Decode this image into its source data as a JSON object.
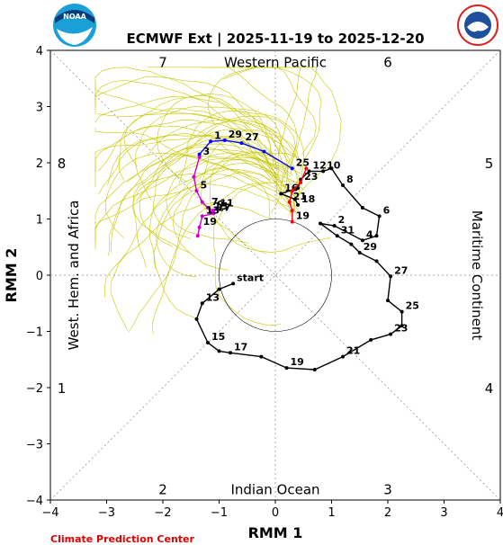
{
  "chart_data": {
    "type": "scatter",
    "title": "ECMWF Ext | 2025-11-19 to 2025-12-20",
    "xlabel": "RMM 1",
    "ylabel": "RMM 2",
    "xlim": [
      -4,
      4
    ],
    "ylim": [
      -4,
      4
    ],
    "xticks": [
      "−4",
      "−3",
      "−2",
      "−1",
      "0",
      "1",
      "2",
      "3",
      "4"
    ],
    "yticks": [
      "−4",
      "−3",
      "−2",
      "−1",
      "0",
      "1",
      "2",
      "3",
      "4"
    ],
    "phase_labels": [
      {
        "text": "7",
        "x": -2,
        "y": 3.8
      },
      {
        "text": "6",
        "x": 2,
        "y": 3.8
      },
      {
        "text": "8",
        "x": -3.8,
        "y": 2
      },
      {
        "text": "5",
        "x": 3.8,
        "y": 2
      },
      {
        "text": "1",
        "x": -3.8,
        "y": -2
      },
      {
        "text": "4",
        "x": 3.8,
        "y": -2
      },
      {
        "text": "2",
        "x": -2,
        "y": -3.8
      },
      {
        "text": "3",
        "x": 2,
        "y": -3.8
      }
    ],
    "region_labels": {
      "top": "Western Pacific",
      "bottom": "Indian Ocean",
      "left": "West. Hem. and Africa",
      "right": "Maritime Continent"
    },
    "credit": "Climate Prediction Center",
    "series": [
      {
        "color": "#000000",
        "points": [
          {
            "x": -0.75,
            "y": -0.15,
            "label": "start"
          },
          {
            "x": -1.0,
            "y": -0.25
          },
          {
            "x": -1.3,
            "y": -0.5,
            "label": "13"
          },
          {
            "x": -1.4,
            "y": -0.78
          },
          {
            "x": -1.2,
            "y": -1.2,
            "label": "15"
          },
          {
            "x": -1.0,
            "y": -1.35
          },
          {
            "x": -0.8,
            "y": -1.38,
            "label": "17"
          },
          {
            "x": -0.25,
            "y": -1.45
          },
          {
            "x": 0.2,
            "y": -1.65,
            "label": "19"
          },
          {
            "x": 0.7,
            "y": -1.68
          },
          {
            "x": 1.2,
            "y": -1.45,
            "label": "21"
          },
          {
            "x": 1.7,
            "y": -1.15
          },
          {
            "x": 2.05,
            "y": -1.05,
            "label": "23"
          },
          {
            "x": 2.25,
            "y": -0.9
          },
          {
            "x": 2.25,
            "y": -0.65,
            "label": "25"
          },
          {
            "x": 2.0,
            "y": -0.45
          },
          {
            "x": 2.05,
            "y": -0.02,
            "label": "27"
          },
          {
            "x": 1.8,
            "y": 0.25
          },
          {
            "x": 1.5,
            "y": 0.4,
            "label": "29"
          },
          {
            "x": 1.35,
            "y": 0.55
          },
          {
            "x": 1.1,
            "y": 0.7,
            "label": "31"
          },
          {
            "x": 0.8,
            "y": 0.92
          },
          {
            "x": 1.05,
            "y": 0.88,
            "label": "2"
          },
          {
            "x": 1.55,
            "y": 0.62,
            "label": "4"
          },
          {
            "x": 1.8,
            "y": 0.7
          },
          {
            "x": 1.85,
            "y": 1.05,
            "label": "6"
          },
          {
            "x": 1.55,
            "y": 1.2
          },
          {
            "x": 1.2,
            "y": 1.6,
            "label": "8"
          },
          {
            "x": 1.0,
            "y": 1.9
          },
          {
            "x": 0.85,
            "y": 1.85,
            "label": "10"
          },
          {
            "x": 0.6,
            "y": 1.85,
            "label": "12"
          },
          {
            "x": 0.45,
            "y": 1.7
          },
          {
            "x": 0.4,
            "y": 1.55
          },
          {
            "x": 0.1,
            "y": 1.45,
            "label": "16"
          },
          {
            "x": 0.35,
            "y": 1.35
          },
          {
            "x": 0.4,
            "y": 1.25,
            "label": "18"
          }
        ]
      },
      {
        "color": "#ff0000",
        "points": [
          {
            "x": 0.55,
            "y": 1.9
          },
          {
            "x": 0.45,
            "y": 1.65,
            "label": "23"
          },
          {
            "x": 0.3,
            "y": 1.5
          },
          {
            "x": 0.25,
            "y": 1.3,
            "label": "21"
          },
          {
            "x": 0.3,
            "y": 1.15
          },
          {
            "x": 0.3,
            "y": 0.95,
            "label": "19"
          }
        ]
      },
      {
        "color": "#0000ff",
        "points": [
          {
            "x": 0.3,
            "y": 1.9,
            "label": "25"
          },
          {
            "x": -0.2,
            "y": 2.2
          },
          {
            "x": -0.6,
            "y": 2.35,
            "label": "27"
          },
          {
            "x": -0.9,
            "y": 2.4,
            "label": "29"
          },
          {
            "x": -1.15,
            "y": 2.38,
            "label": "1"
          },
          {
            "x": -1.35,
            "y": 2.15
          }
        ]
      },
      {
        "color": "#cc00cc",
        "points": [
          {
            "x": -1.35,
            "y": 2.1,
            "label": "3"
          },
          {
            "x": -1.45,
            "y": 1.75
          },
          {
            "x": -1.4,
            "y": 1.5,
            "label": "5"
          },
          {
            "x": -1.3,
            "y": 1.3
          },
          {
            "x": -1.2,
            "y": 1.2,
            "label": "7"
          },
          {
            "x": -1.1,
            "y": 1.15,
            "label": "9"
          },
          {
            "x": -1.05,
            "y": 1.18,
            "label": "11"
          },
          {
            "x": -1.15,
            "y": 1.12,
            "label": "15"
          },
          {
            "x": -1.1,
            "y": 1.1,
            "label": "17"
          },
          {
            "x": -1.3,
            "y": 1.05,
            "label": "13"
          },
          {
            "x": -1.35,
            "y": 0.85,
            "label": "19"
          },
          {
            "x": -1.38,
            "y": 0.7
          }
        ]
      }
    ],
    "ensemble_color": "#c8c800",
    "grid": false
  }
}
